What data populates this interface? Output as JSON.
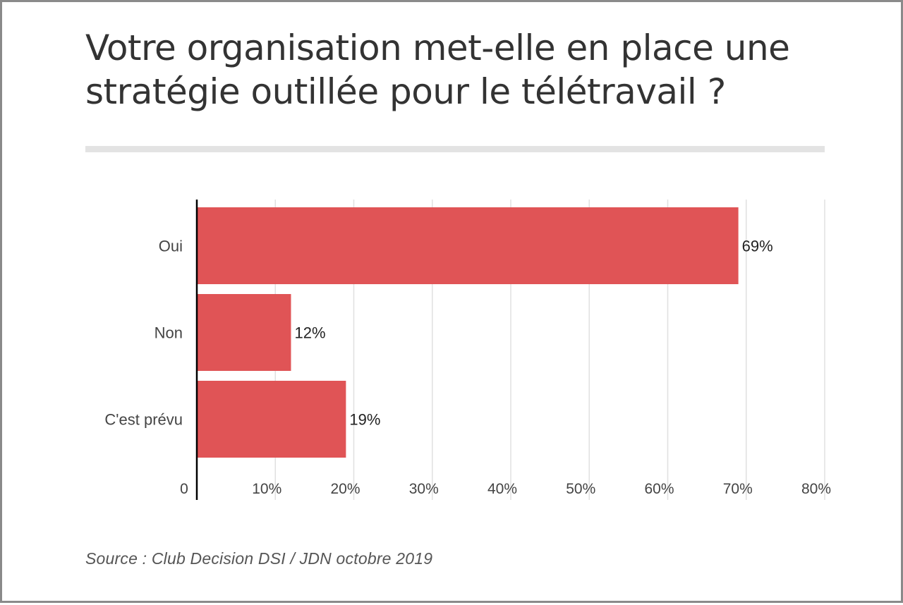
{
  "title": {
    "line1": "Votre organisation met-elle en place une",
    "line2": "stratégie outillée pour le télétravail ?"
  },
  "source": "Source : Club Decision DSI / JDN octobre 2019",
  "chart_data": {
    "type": "bar",
    "orientation": "horizontal",
    "categories": [
      "Oui",
      "Non",
      "C'est prévu"
    ],
    "values": [
      69,
      12,
      19
    ],
    "data_labels": [
      "69%",
      "12%",
      "19%"
    ],
    "xlim": [
      0,
      80
    ],
    "x_ticks": [
      {
        "value": 0,
        "label": "0"
      },
      {
        "value": 10,
        "label": "10%"
      },
      {
        "value": 20,
        "label": "20%"
      },
      {
        "value": 30,
        "label": "30%"
      },
      {
        "value": 40,
        "label": "40%"
      },
      {
        "value": 50,
        "label": "50%"
      },
      {
        "value": 60,
        "label": "60%"
      },
      {
        "value": 70,
        "label": "70%"
      },
      {
        "value": 80,
        "label": "80%"
      }
    ],
    "grid": "vertical",
    "bar_color": "#e05456",
    "grid_color": "#e0e0e0",
    "axis_color": "#000000",
    "label_color": "#444444"
  }
}
